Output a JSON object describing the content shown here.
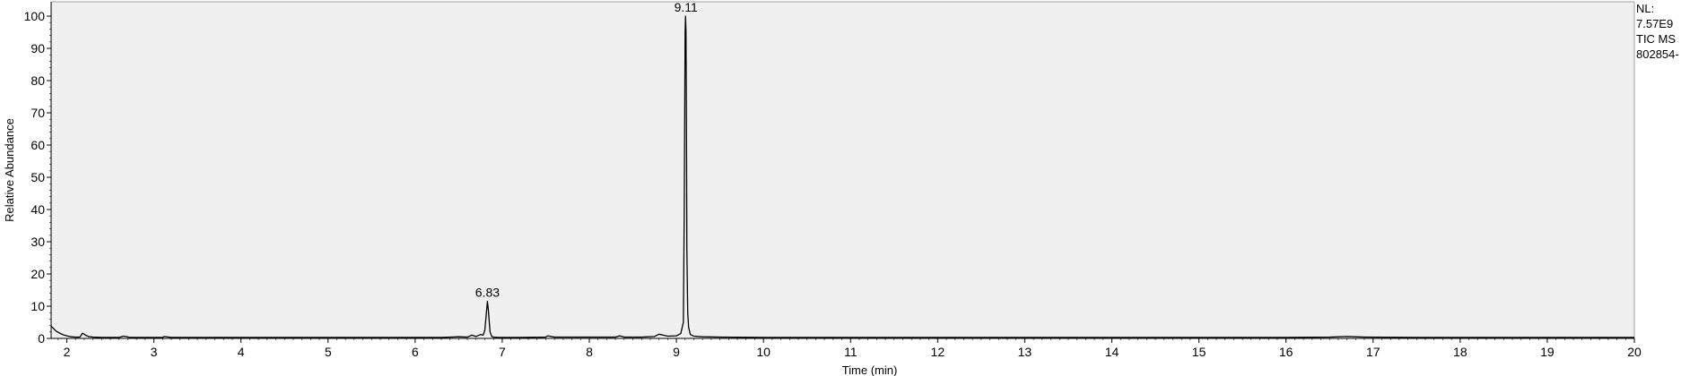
{
  "info": {
    "nl_label": "NL:",
    "nl_value": "7.57E9",
    "filter": "TIC  MS",
    "file": "802854-"
  },
  "chart_data": {
    "type": "line",
    "title": "",
    "xlabel": "Time (min)",
    "ylabel": "Relative Abundance",
    "xlim": [
      1.82,
      20.0
    ],
    "ylim": [
      0,
      100
    ],
    "x_ticks": [
      2,
      3,
      4,
      5,
      6,
      7,
      8,
      9,
      10,
      11,
      12,
      13,
      14,
      15,
      16,
      17,
      18,
      19,
      20
    ],
    "y_ticks": [
      0,
      10,
      20,
      30,
      40,
      50,
      60,
      70,
      80,
      90,
      100
    ],
    "grid": false,
    "line_color": "#000000",
    "plot_background": "#f0f0f0",
    "series": [
      {
        "x": [
          1.82,
          1.85,
          1.88,
          1.92,
          1.96,
          2.0,
          2.05,
          2.1,
          2.15,
          2.18,
          2.2,
          2.22,
          2.25,
          2.3,
          2.4,
          2.5,
          2.6,
          2.65,
          2.68,
          2.72,
          2.8,
          3.0,
          3.1,
          3.12,
          3.2,
          3.5,
          4.0,
          4.5,
          5.0,
          5.5,
          6.0,
          6.3,
          6.5,
          6.6,
          6.65,
          6.7,
          6.75,
          6.78,
          6.8,
          6.82,
          6.83,
          6.84,
          6.86,
          6.88,
          6.9,
          6.95,
          7.0,
          7.2,
          7.5,
          7.52,
          7.6,
          8.0,
          8.3,
          8.35,
          8.4,
          8.6,
          8.75,
          8.8,
          8.85,
          8.9,
          9.0,
          9.05,
          9.08,
          9.09,
          9.1,
          9.105,
          9.11,
          9.115,
          9.12,
          9.13,
          9.14,
          9.16,
          9.2,
          9.3,
          9.5,
          10.0,
          11.0,
          12.0,
          13.0,
          14.0,
          15.0,
          16.0,
          16.5,
          16.7,
          16.8,
          16.9,
          17.5,
          18.0,
          19.0,
          20.0
        ],
        "y": [
          3.8,
          3.0,
          2.2,
          1.6,
          1.1,
          0.8,
          0.5,
          0.4,
          0.4,
          1.6,
          1.3,
          0.9,
          0.6,
          0.4,
          0.3,
          0.3,
          0.3,
          0.7,
          0.6,
          0.3,
          0.3,
          0.3,
          0.3,
          0.6,
          0.3,
          0.3,
          0.3,
          0.3,
          0.3,
          0.3,
          0.3,
          0.3,
          0.5,
          0.4,
          1.0,
          0.6,
          1.2,
          1.0,
          2.5,
          8.5,
          11.5,
          9.0,
          2.0,
          0.6,
          0.4,
          0.3,
          0.3,
          0.3,
          0.4,
          0.8,
          0.4,
          0.4,
          0.4,
          0.8,
          0.4,
          0.4,
          0.6,
          1.3,
          1.0,
          0.7,
          0.8,
          1.5,
          5.0,
          40.0,
          95.0,
          100.0,
          95.0,
          70.0,
          28.0,
          8.0,
          3.5,
          1.2,
          0.7,
          0.5,
          0.4,
          0.3,
          0.3,
          0.3,
          0.3,
          0.3,
          0.3,
          0.3,
          0.4,
          0.6,
          0.5,
          0.4,
          0.3,
          0.3,
          0.3,
          0.3
        ]
      }
    ],
    "peak_labels": [
      {
        "x": 6.83,
        "y": 11.5,
        "text": "6.83"
      },
      {
        "x": 9.11,
        "y": 100,
        "text": "9.11"
      }
    ]
  }
}
